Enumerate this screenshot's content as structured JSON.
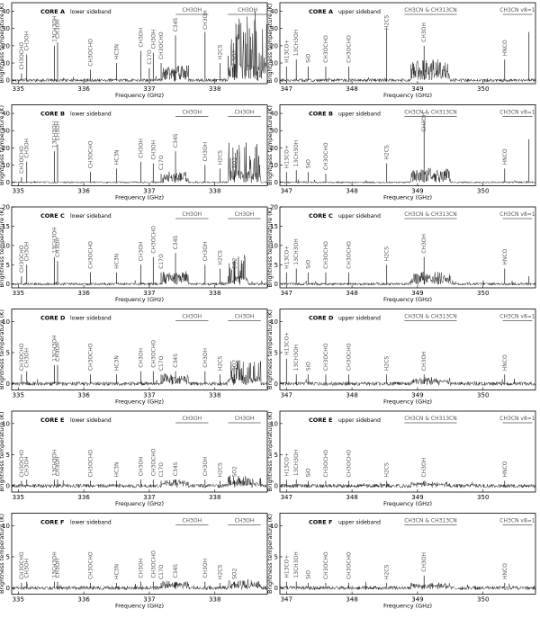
{
  "figure": {
    "xlabel": "Frequency (GHz)",
    "ylabel": "Brightness temperature (K)",
    "sideband_labels": {
      "lsb": "lower sideband",
      "usb": "upper sideband"
    },
    "x_ticks": {
      "lsb": [
        335,
        336,
        337,
        338
      ],
      "usb": [
        347,
        348,
        349,
        350
      ]
    }
  },
  "chart_data": [
    {
      "type": "line",
      "panel": "core-a-lsb",
      "core": "CORE A",
      "sideband": "lower sideband",
      "xlim": [
        334.9,
        338.8
      ],
      "ylim": [
        -2,
        45
      ],
      "yticks": [
        0,
        10,
        20,
        30,
        40
      ],
      "noise": 0.9,
      "forest": [
        337.2,
        337.6,
        8
      ],
      "dense": [
        338.2,
        338.8,
        40
      ],
      "lines": [
        [
          335.05,
          4,
          "CH3OCHO",
          "v"
        ],
        [
          335.13,
          15,
          "CH3OH",
          "v"
        ],
        [
          335.55,
          20,
          "13CH3OH",
          "v"
        ],
        [
          335.6,
          22,
          "CH3OH",
          "v"
        ],
        [
          336.1,
          6,
          "CH3OCHO",
          "v"
        ],
        [
          336.5,
          10,
          "HC3N",
          "v"
        ],
        [
          336.87,
          17,
          "CH3OH",
          "v"
        ],
        [
          337.0,
          7,
          "C17O",
          "v"
        ],
        [
          337.06,
          16,
          "CH3OH",
          "v"
        ],
        [
          337.18,
          10,
          "CH3OCHO",
          "v"
        ],
        [
          337.4,
          26,
          "C34S",
          "v"
        ],
        [
          337.85,
          28,
          "CH3OH",
          "v"
        ],
        [
          338.08,
          10,
          "H2CS",
          "v"
        ],
        [
          338.3,
          9,
          "SO2",
          "v"
        ]
      ],
      "spans": [
        [
          337.4,
          337.9,
          "CH3OH"
        ],
        [
          338.2,
          338.8,
          "CH3OH"
        ]
      ]
    },
    {
      "type": "line",
      "panel": "core-a-usb",
      "core": "CORE A",
      "sideband": "upper sideband",
      "xlim": [
        346.9,
        350.8
      ],
      "ylim": [
        -2,
        45
      ],
      "yticks": [
        0,
        10,
        20,
        30,
        40
      ],
      "noise": 0.9,
      "forest": [
        348.9,
        349.5,
        12
      ],
      "dense": null,
      "lines": [
        [
          347.0,
          8,
          "H13CO+",
          "v"
        ],
        [
          347.15,
          12,
          "13CH3OH",
          "v"
        ],
        [
          347.33,
          8,
          "SiO",
          "v"
        ],
        [
          347.6,
          8,
          "CH3OCHO",
          "v"
        ],
        [
          347.95,
          8,
          "CH3OCHO",
          "v"
        ],
        [
          348.53,
          30,
          "H2CS",
          "v"
        ],
        [
          349.1,
          20,
          "CH3OH",
          "v"
        ],
        [
          350.33,
          12,
          "HNCO",
          "v"
        ],
        [
          350.7,
          28,
          "",
          "v"
        ]
      ],
      "spans": [
        [
          348.8,
          349.6,
          "CH3CN & CH313CN"
        ],
        [
          350.3,
          350.75,
          "CH3CN v8=1"
        ]
      ]
    },
    {
      "type": "line",
      "panel": "core-b-lsb",
      "core": "CORE B",
      "sideband": "lower sideband",
      "xlim": [
        334.9,
        338.8
      ],
      "ylim": [
        -2,
        45
      ],
      "yticks": [
        0,
        10,
        20,
        30,
        40
      ],
      "noise": 0.5,
      "forest": [
        337.2,
        337.6,
        6
      ],
      "dense": [
        338.2,
        338.7,
        25
      ],
      "lines": [
        [
          335.05,
          3,
          "CH3OCHO",
          "v"
        ],
        [
          335.13,
          12,
          "CH3OH",
          "v"
        ],
        [
          335.55,
          18,
          "13CH3OH",
          "v"
        ],
        [
          335.6,
          22,
          "CH3OH",
          "v"
        ],
        [
          336.1,
          6,
          "CH3OCHO",
          "v"
        ],
        [
          336.5,
          8,
          "HC3N",
          "v"
        ],
        [
          336.87,
          12,
          "CH3OH",
          "v"
        ],
        [
          337.06,
          11,
          "CH3OH",
          "v"
        ],
        [
          337.18,
          5,
          "C17O",
          "v"
        ],
        [
          337.4,
          18,
          "C34S",
          "v"
        ],
        [
          337.85,
          10,
          "CH3OH",
          "v"
        ],
        [
          338.08,
          8,
          "H2CS",
          "v"
        ],
        [
          338.3,
          6,
          "SO2",
          "v"
        ]
      ],
      "spans": [
        [
          337.4,
          337.9,
          "CH3OH"
        ],
        [
          338.2,
          338.7,
          "CH3OH"
        ]
      ]
    },
    {
      "type": "line",
      "panel": "core-b-usb",
      "core": "CORE B",
      "sideband": "upper sideband",
      "xlim": [
        346.9,
        350.8
      ],
      "ylim": [
        -2,
        45
      ],
      "yticks": [
        0,
        10,
        20,
        30,
        40
      ],
      "noise": 0.5,
      "forest": [
        348.9,
        349.5,
        8
      ],
      "dense": null,
      "lines": [
        [
          347.0,
          6,
          "H13CO+",
          "v"
        ],
        [
          347.15,
          7,
          "13CH3OH",
          "v"
        ],
        [
          347.33,
          6,
          "SiO",
          "v"
        ],
        [
          347.6,
          5,
          "CH3OCHO",
          "v"
        ],
        [
          348.53,
          11,
          "H2CS",
          "v"
        ],
        [
          349.1,
          35,
          "CH3OH",
          "v"
        ],
        [
          350.33,
          8,
          "HNCO",
          "v"
        ],
        [
          350.7,
          25,
          "",
          "v"
        ]
      ],
      "spans": [
        [
          348.8,
          349.6,
          "CH3CN & CH313CN"
        ],
        [
          350.3,
          350.75,
          "CH3CN v8=1"
        ]
      ]
    },
    {
      "type": "line",
      "panel": "core-c-lsb",
      "core": "CORE C",
      "sideband": "lower sideband",
      "xlim": [
        334.9,
        338.8
      ],
      "ylim": [
        -1,
        20
      ],
      "yticks": [
        0,
        5,
        10,
        15,
        20
      ],
      "noise": 0.35,
      "forest": [
        337.2,
        337.6,
        3
      ],
      "dense": [
        338.2,
        338.5,
        8
      ],
      "lines": [
        [
          335.05,
          2,
          "CH3OCHO",
          "v"
        ],
        [
          335.13,
          5,
          "CH3OH",
          "v"
        ],
        [
          335.55,
          7,
          "13CH3OH",
          "v"
        ],
        [
          335.6,
          6,
          "CH3OH",
          "v"
        ],
        [
          336.1,
          3,
          "CH3OCHO",
          "v"
        ],
        [
          336.5,
          3,
          "HC3N",
          "v"
        ],
        [
          336.87,
          5,
          "CH3OH",
          "v"
        ],
        [
          337.06,
          7,
          "CH3OCHO",
          "v"
        ],
        [
          337.18,
          3,
          "C17O",
          "v"
        ],
        [
          337.4,
          8,
          "C34S",
          "v"
        ],
        [
          337.85,
          5,
          "CH3OH",
          "v"
        ],
        [
          338.08,
          4,
          "H2CS",
          "v"
        ],
        [
          338.3,
          3,
          "SO2",
          "v"
        ]
      ],
      "spans": [
        [
          337.4,
          337.9,
          "CH3OH"
        ],
        [
          338.2,
          338.7,
          "CH3OH"
        ]
      ]
    },
    {
      "type": "line",
      "panel": "core-c-usb",
      "core": "CORE C",
      "sideband": "upper sideband",
      "xlim": [
        346.9,
        350.8
      ],
      "ylim": [
        -1,
        20
      ],
      "yticks": [
        0,
        5,
        10,
        15,
        20
      ],
      "noise": 0.35,
      "forest": [
        348.9,
        349.5,
        3
      ],
      "dense": null,
      "lines": [
        [
          347.0,
          3,
          "H13CO+",
          "v"
        ],
        [
          347.15,
          4,
          "13CH3OH",
          "v"
        ],
        [
          347.33,
          3,
          "SiO",
          "v"
        ],
        [
          347.6,
          3,
          "CH3OCHO",
          "v"
        ],
        [
          347.95,
          3,
          "CH3OCHO",
          "v"
        ],
        [
          348.53,
          5,
          "H2CS",
          "v"
        ],
        [
          349.1,
          7,
          "CH3OH",
          "v"
        ],
        [
          350.33,
          4,
          "HNCO",
          "v"
        ],
        [
          350.7,
          2,
          "",
          "v"
        ]
      ],
      "spans": [
        [
          348.8,
          349.6,
          "CH3CN & CH313CN"
        ],
        [
          350.3,
          350.75,
          "CH3CN v8=1"
        ]
      ]
    },
    {
      "type": "line",
      "panel": "core-d-lsb",
      "core": "CORE D",
      "sideband": "lower sideband",
      "xlim": [
        334.9,
        338.8
      ],
      "ylim": [
        -1,
        12
      ],
      "yticks": [
        0,
        5,
        10
      ],
      "noise": 0.3,
      "forest": [
        337.2,
        337.6,
        1.5
      ],
      "dense": [
        338.2,
        338.7,
        4
      ],
      "lines": [
        [
          335.05,
          1.5,
          "CH3OCHO",
          "v"
        ],
        [
          335.13,
          2,
          "CH3OH",
          "v"
        ],
        [
          335.55,
          3,
          "13CH3OH",
          "v"
        ],
        [
          335.6,
          3,
          "CH3OH",
          "v"
        ],
        [
          336.1,
          1.5,
          "CH3OCHO",
          "v"
        ],
        [
          336.5,
          1.5,
          "HC3N",
          "v"
        ],
        [
          336.87,
          2,
          "CH3OH",
          "v"
        ],
        [
          337.06,
          2,
          "CH3OCHO",
          "v"
        ],
        [
          337.18,
          1.5,
          "C17O",
          "v"
        ],
        [
          337.4,
          2,
          "C34S",
          "v"
        ],
        [
          337.85,
          2,
          "CH3OH",
          "v"
        ],
        [
          338.08,
          1.5,
          "H2CS",
          "v"
        ],
        [
          338.3,
          1.5,
          "SO2",
          "v"
        ]
      ],
      "spans": [
        [
          337.4,
          337.9,
          "CH3OH"
        ],
        [
          338.2,
          338.7,
          "CH3OH"
        ]
      ]
    },
    {
      "type": "line",
      "panel": "core-d-usb",
      "core": "CORE D",
      "sideband": "upper sideband",
      "xlim": [
        346.9,
        350.8
      ],
      "ylim": [
        -1,
        12
      ],
      "yticks": [
        0,
        5,
        10
      ],
      "noise": 0.3,
      "forest": [
        348.9,
        349.5,
        0.8
      ],
      "dense": null,
      "lines": [
        [
          347.0,
          4,
          "H13CO+",
          "v"
        ],
        [
          347.15,
          1.5,
          "13CH3OH",
          "v"
        ],
        [
          347.33,
          1.5,
          "SiO",
          "v"
        ],
        [
          347.6,
          1.5,
          "CH3OCHO",
          "v"
        ],
        [
          347.95,
          1.5,
          "CH3OCHO",
          "v"
        ],
        [
          348.53,
          1.5,
          "H2CS",
          "v"
        ],
        [
          349.1,
          1.5,
          "CH3OH",
          "v"
        ],
        [
          350.33,
          1.5,
          "HNCO",
          "v"
        ]
      ],
      "spans": [
        [
          348.8,
          349.6,
          "CH3CN & CH313CN"
        ],
        [
          350.3,
          350.75,
          "CH3CN v8=1"
        ]
      ]
    },
    {
      "type": "line",
      "panel": "core-e-lsb",
      "core": "CORE E",
      "sideband": "lower sideband",
      "xlim": [
        334.9,
        338.8
      ],
      "ylim": [
        -1,
        12
      ],
      "yticks": [
        0,
        5,
        10
      ],
      "noise": 0.3,
      "forest": [
        337.2,
        337.6,
        0.8
      ],
      "dense": [
        338.2,
        338.7,
        1.5
      ],
      "lines": [
        [
          335.05,
          0.8,
          "CH3OCHO",
          "v"
        ],
        [
          335.13,
          1,
          "CH3OH",
          "v"
        ],
        [
          335.55,
          1,
          "13CH3OH",
          "v"
        ],
        [
          335.6,
          1,
          "CH3OH",
          "v"
        ],
        [
          336.1,
          0.8,
          "CH3OCHO",
          "v"
        ],
        [
          336.5,
          0.8,
          "HC3N",
          "v"
        ],
        [
          336.87,
          1,
          "CH3OH",
          "v"
        ],
        [
          337.06,
          1,
          "CH3OCHO",
          "v"
        ],
        [
          337.18,
          0.8,
          "C17O",
          "v"
        ],
        [
          337.4,
          1,
          "C34S",
          "v"
        ],
        [
          337.85,
          1,
          "CH3OH",
          "v"
        ],
        [
          338.08,
          0.8,
          "H2CS",
          "v"
        ],
        [
          338.3,
          0.8,
          "SO2",
          "v"
        ]
      ],
      "spans": [
        [
          337.4,
          337.9,
          "CH3OH"
        ],
        [
          338.2,
          338.7,
          "CH3OH"
        ]
      ]
    },
    {
      "type": "line",
      "panel": "core-e-usb",
      "core": "CORE E",
      "sideband": "upper sideband",
      "xlim": [
        346.9,
        350.8
      ],
      "ylim": [
        -1,
        12
      ],
      "yticks": [
        0,
        5,
        10
      ],
      "noise": 0.3,
      "forest": [
        348.9,
        349.5,
        0.5
      ],
      "dense": null,
      "lines": [
        [
          347.0,
          1,
          "H13CO+",
          "v"
        ],
        [
          347.15,
          1,
          "13CH3OH",
          "v"
        ],
        [
          347.33,
          0.8,
          "SiO",
          "v"
        ],
        [
          347.6,
          0.8,
          "CH3OCHO",
          "v"
        ],
        [
          347.95,
          0.8,
          "CH3OCHO",
          "v"
        ],
        [
          348.53,
          0.8,
          "H2CS",
          "v"
        ],
        [
          349.1,
          0.8,
          "CH3OH",
          "v"
        ],
        [
          350.33,
          0.8,
          "HNCO",
          "v"
        ]
      ],
      "spans": [
        [
          348.8,
          349.6,
          "CH3CN & CH313CN"
        ],
        [
          350.3,
          350.75,
          "CH3CN v8=1"
        ]
      ]
    },
    {
      "type": "line",
      "panel": "core-f-lsb",
      "core": "CORE F",
      "sideband": "lower sideband",
      "xlim": [
        334.9,
        338.8
      ],
      "ylim": [
        -1,
        12
      ],
      "yticks": [
        0,
        5,
        10
      ],
      "noise": 0.3,
      "forest": [
        337.2,
        337.6,
        1
      ],
      "dense": [
        338.2,
        338.7,
        1.5
      ],
      "lines": [
        [
          335.05,
          0.8,
          "CH3OCHO",
          "v"
        ],
        [
          335.13,
          1,
          "CH3OH",
          "v"
        ],
        [
          335.55,
          1,
          "13CH3OH",
          "v"
        ],
        [
          335.6,
          1,
          "CH3OH",
          "v"
        ],
        [
          336.1,
          0.8,
          "CH3OCHO",
          "v"
        ],
        [
          336.5,
          0.8,
          "HC3N",
          "v"
        ],
        [
          336.87,
          1,
          "CH3OH",
          "v"
        ],
        [
          337.06,
          1,
          "CH3OCHO",
          "v"
        ],
        [
          337.18,
          0.8,
          "C17O",
          "v"
        ],
        [
          337.4,
          1,
          "C34S",
          "v"
        ],
        [
          337.85,
          1,
          "CH3OH",
          "v"
        ],
        [
          338.08,
          0.8,
          "H2CS",
          "v"
        ],
        [
          338.3,
          0.8,
          "SO2",
          "v"
        ]
      ],
      "spans": [
        [
          337.4,
          337.9,
          "CH3OH"
        ],
        [
          338.2,
          338.7,
          "CH3OH"
        ]
      ]
    },
    {
      "type": "line",
      "panel": "core-f-usb",
      "core": "CORE F",
      "sideband": "upper sideband",
      "xlim": [
        346.9,
        350.8
      ],
      "ylim": [
        -1,
        12
      ],
      "yticks": [
        0,
        5,
        10
      ],
      "noise": 0.3,
      "forest": [
        348.9,
        349.5,
        0.6
      ],
      "dense": null,
      "lines": [
        [
          347.0,
          1,
          "H13CO+",
          "v"
        ],
        [
          347.15,
          1,
          "13CH3OH",
          "v"
        ],
        [
          347.33,
          0.8,
          "SiO",
          "v"
        ],
        [
          347.6,
          0.8,
          "CH3OCHO",
          "v"
        ],
        [
          347.95,
          0.8,
          "CH3OCHO",
          "v"
        ],
        [
          348.53,
          0.8,
          "H2CS",
          "v"
        ],
        [
          349.1,
          2,
          "CH3OH",
          "v"
        ],
        [
          350.33,
          0.8,
          "HNCO",
          "v"
        ]
      ],
      "spans": [
        [
          348.8,
          349.6,
          "CH3CN & CH313CN"
        ],
        [
          350.3,
          350.75,
          "CH3CN v8=1"
        ]
      ]
    }
  ]
}
